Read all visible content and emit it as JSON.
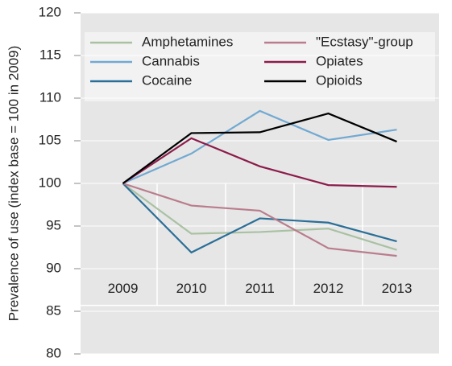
{
  "chart_data": {
    "type": "line",
    "y_label": "Prevalence of use (index base = 100 in 2009)",
    "categories": [
      "2009",
      "2010",
      "2011",
      "2012",
      "2013"
    ],
    "series": [
      {
        "name": "Amphetamines",
        "color": "#a9c1a3",
        "values": [
          100,
          94.1,
          94.3,
          94.7,
          92.2
        ]
      },
      {
        "name": "Cannabis",
        "color": "#72a9d2",
        "values": [
          100,
          103.5,
          108.5,
          105.1,
          106.3
        ]
      },
      {
        "name": "Cocaine",
        "color": "#2b6f98",
        "values": [
          100,
          91.9,
          95.9,
          95.4,
          93.2
        ]
      },
      {
        "name": "\"Ecstasy\"-group",
        "color": "#b97d8d",
        "values": [
          100,
          97.4,
          96.8,
          92.4,
          91.5
        ]
      },
      {
        "name": "Opiates",
        "color": "#8c1c4b",
        "values": [
          100,
          105.3,
          102.0,
          99.8,
          99.6
        ]
      },
      {
        "name": "Opioids",
        "color": "#000000",
        "values": [
          100,
          105.9,
          106.0,
          108.2,
          104.9
        ]
      }
    ],
    "ylim": [
      80,
      120
    ],
    "yticks": [
      80,
      85,
      90,
      95,
      100,
      105,
      110,
      115,
      120
    ],
    "grid": true
  }
}
